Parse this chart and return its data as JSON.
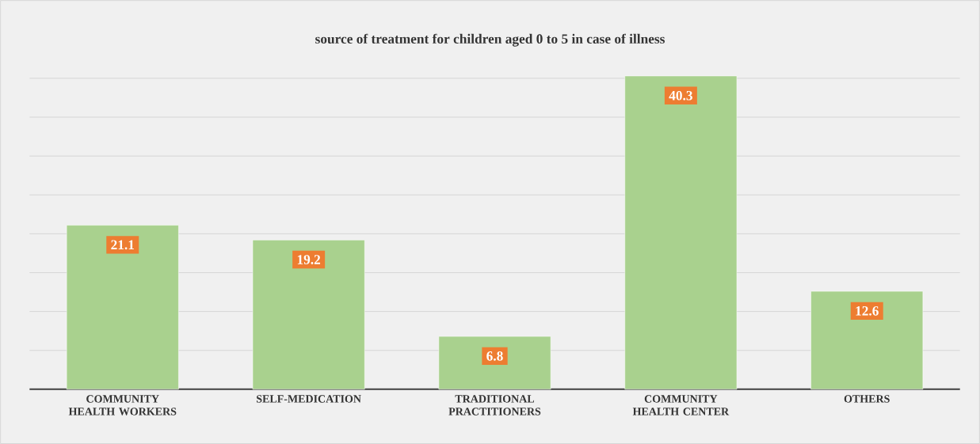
{
  "chart_data": {
    "type": "bar",
    "title": "source of treatment for children aged 0 to 5 in case of illness",
    "categories": [
      "COMMUNITY HEALTH WORKERS",
      "SELF-MEDICATION",
      "TRADITIONAL PRACTITIONERS",
      "COMMUNITY HEALTH CENTER",
      "OTHERS"
    ],
    "values": [
      21.1,
      19.2,
      6.8,
      40.3,
      12.6
    ],
    "color": "#a9d18e",
    "data_labels": true,
    "grid": "y"
  }
}
